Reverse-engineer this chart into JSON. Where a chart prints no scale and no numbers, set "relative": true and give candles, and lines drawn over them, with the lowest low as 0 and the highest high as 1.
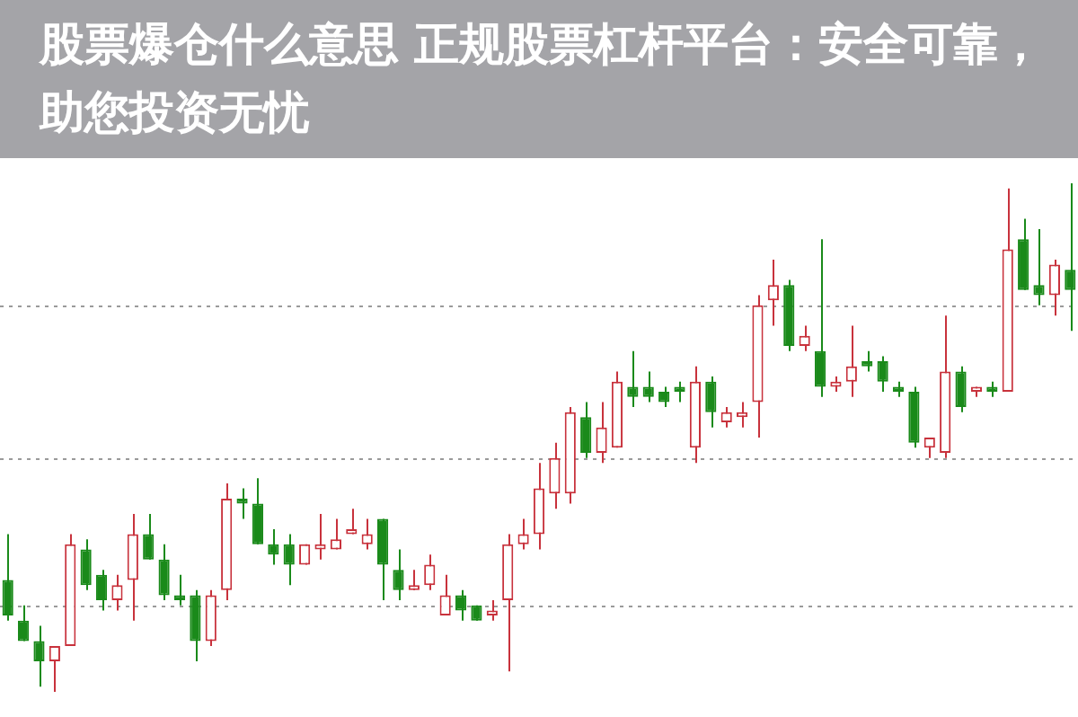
{
  "chart_data": {
    "type": "candlestick",
    "title": "股票爆仓什么意思 正规股票杠杆平台：安全可靠，助您投资无忧",
    "relative": true,
    "ref_lines": [
      {
        "axis": "y",
        "value": 0.17,
        "color": "#9a9a9a",
        "line_style": "dotted"
      },
      {
        "axis": "y",
        "value": 0.46,
        "color": "#9a9a9a",
        "line_style": "dotted"
      },
      {
        "axis": "y",
        "value": 0.76,
        "color": "#9a9a9a",
        "line_style": "dotted"
      }
    ],
    "colors": [
      "#1a8a1a",
      "#1a8a1a",
      "#1a8a1a",
      "#c8323c",
      "#c8323c",
      "#1a8a1a",
      "#1a8a1a",
      "#c8323c",
      "#c8323c",
      "#1a8a1a",
      "#1a8a1a",
      "#1a8a1a",
      "#1a8a1a",
      "#c8323c",
      "#c8323c",
      "#1a8a1a",
      "#1a8a1a",
      "#1a8a1a",
      "#1a8a1a",
      "#c8323c",
      "#c8323c",
      "#c8323c",
      "#c8323c",
      "#c8323c",
      "#1a8a1a",
      "#1a8a1a",
      "#c8323c",
      "#c8323c",
      "#c8323c",
      "#1a8a1a",
      "#1a8a1a",
      "#c8323c",
      "#c8323c",
      "#c8323c",
      "#c8323c",
      "#c8323c",
      "#c8323c",
      "#1a8a1a",
      "#c8323c",
      "#c8323c",
      "#1a8a1a",
      "#1a8a1a",
      "#1a8a1a",
      "#1a8a1a",
      "#c8323c",
      "#1a8a1a",
      "#c8323c",
      "#c8323c",
      "#c8323c",
      "#c8323c",
      "#1a8a1a",
      "#c8323c",
      "#1a8a1a",
      "#c8323c",
      "#c8323c",
      "#1a8a1a",
      "#1a8a1a",
      "#1a8a1a",
      "#1a8a1a",
      "#c8323c",
      "#c8323c",
      "#1a8a1a",
      "#c8323c",
      "#1a8a1a",
      "#c8323c",
      "#1a8a1a",
      "#1a8a1a",
      "#c8323c",
      "#1a8a1a"
    ],
    "categories": [
      null,
      null,
      null,
      null,
      null,
      null,
      null,
      null,
      null,
      null,
      null,
      null,
      null,
      null,
      null,
      null,
      null,
      null,
      null,
      null,
      null,
      null,
      null,
      null,
      null,
      null,
      null,
      null,
      null,
      null,
      null,
      null,
      null,
      null,
      null,
      null,
      null,
      null,
      null,
      null,
      null,
      null,
      null,
      null,
      null,
      null,
      null,
      null,
      null,
      null,
      null,
      null,
      null,
      null,
      null,
      null,
      null,
      null,
      null,
      null,
      null,
      null,
      null,
      null,
      null,
      null,
      null,
      null,
      null
    ],
    "ohlc": [
      [
        0.22,
        0.31,
        0.14,
        0.15
      ],
      [
        0.14,
        0.17,
        0.1,
        0.1
      ],
      [
        0.1,
        0.13,
        0.01,
        0.06
      ],
      [
        0.06,
        0.09,
        0,
        0.09
      ],
      [
        0.09,
        0.31,
        0.09,
        0.29
      ],
      [
        0.28,
        0.3,
        0.2,
        0.21
      ],
      [
        0.23,
        0.24,
        0.16,
        0.18
      ],
      [
        0.18,
        0.23,
        0.16,
        0.21
      ],
      [
        0.22,
        0.35,
        0.14,
        0.31
      ],
      [
        0.31,
        0.35,
        0.26,
        0.26
      ],
      [
        0.26,
        0.29,
        0.18,
        0.19
      ],
      [
        0.19,
        0.23,
        0.17,
        0.18
      ],
      [
        0.19,
        0.2,
        0.06,
        0.1
      ],
      [
        0.1,
        0.2,
        0.09,
        0.19
      ],
      [
        0.2,
        0.41,
        0.18,
        0.38
      ],
      [
        0.38,
        0.4,
        0.34,
        0.37
      ],
      [
        0.37,
        0.42,
        0.29,
        0.29
      ],
      [
        0.29,
        0.32,
        0.25,
        0.27
      ],
      [
        0.29,
        0.31,
        0.21,
        0.25
      ],
      [
        0.25,
        0.29,
        0.25,
        0.29
      ],
      [
        0.28,
        0.35,
        0.26,
        0.29
      ],
      [
        0.28,
        0.34,
        0.28,
        0.3
      ],
      [
        0.31,
        0.36,
        0.31,
        0.32
      ],
      [
        0.29,
        0.34,
        0.28,
        0.31
      ],
      [
        0.34,
        0.34,
        0.18,
        0.25
      ],
      [
        0.24,
        0.28,
        0.18,
        0.2
      ],
      [
        0.2,
        0.24,
        0.2,
        0.21
      ],
      [
        0.21,
        0.27,
        0.2,
        0.25
      ],
      [
        0.15,
        0.23,
        0.15,
        0.19
      ],
      [
        0.19,
        0.2,
        0.14,
        0.16
      ],
      [
        0.17,
        0.17,
        0.14,
        0.14
      ],
      [
        0.15,
        0.18,
        0.14,
        0.16
      ],
      [
        0.18,
        0.31,
        0.04,
        0.29
      ],
      [
        0.29,
        0.34,
        0.28,
        0.31
      ],
      [
        0.31,
        0.45,
        0.28,
        0.4
      ],
      [
        0.39,
        0.49,
        0.36,
        0.46
      ],
      [
        0.39,
        0.56,
        0.37,
        0.55
      ],
      [
        0.54,
        0.57,
        0.46,
        0.47
      ],
      [
        0.47,
        0.57,
        0.45,
        0.52
      ],
      [
        0.48,
        0.63,
        0.48,
        0.61
      ],
      [
        0.6,
        0.67,
        0.56,
        0.58
      ],
      [
        0.6,
        0.63,
        0.57,
        0.58
      ],
      [
        0.59,
        0.6,
        0.56,
        0.57
      ],
      [
        0.6,
        0.61,
        0.57,
        0.59
      ],
      [
        0.48,
        0.64,
        0.45,
        0.61
      ],
      [
        0.61,
        0.62,
        0.52,
        0.55
      ],
      [
        0.53,
        0.56,
        0.52,
        0.55
      ],
      [
        0.54,
        0.57,
        0.52,
        0.55
      ],
      [
        0.57,
        0.78,
        0.5,
        0.76
      ],
      [
        0.77,
        0.85,
        0.72,
        0.8
      ],
      [
        0.8,
        0.81,
        0.67,
        0.68
      ],
      [
        0.68,
        0.72,
        0.67,
        0.7
      ],
      [
        0.67,
        0.89,
        0.58,
        0.6
      ],
      [
        0.6,
        0.62,
        0.59,
        0.61
      ],
      [
        0.61,
        0.72,
        0.58,
        0.64
      ],
      [
        0.65,
        0.67,
        0.63,
        0.64
      ],
      [
        0.65,
        0.66,
        0.59,
        0.61
      ],
      [
        0.6,
        0.61,
        0.58,
        0.59
      ],
      [
        0.59,
        0.6,
        0.48,
        0.49
      ],
      [
        0.48,
        0.5,
        0.46,
        0.5
      ],
      [
        0.47,
        0.74,
        0.46,
        0.63
      ],
      [
        0.63,
        0.64,
        0.55,
        0.56
      ],
      [
        0.59,
        0.6,
        0.58,
        0.6
      ],
      [
        0.6,
        0.61,
        0.58,
        0.59
      ],
      [
        0.59,
        0.99,
        0.59,
        0.87
      ],
      [
        0.89,
        0.93,
        0.79,
        0.79
      ],
      [
        0.8,
        0.91,
        0.76,
        0.78
      ],
      [
        0.78,
        0.85,
        0.74,
        0.84
      ],
      [
        0.83,
        1,
        0.71,
        0.79
      ]
    ]
  }
}
